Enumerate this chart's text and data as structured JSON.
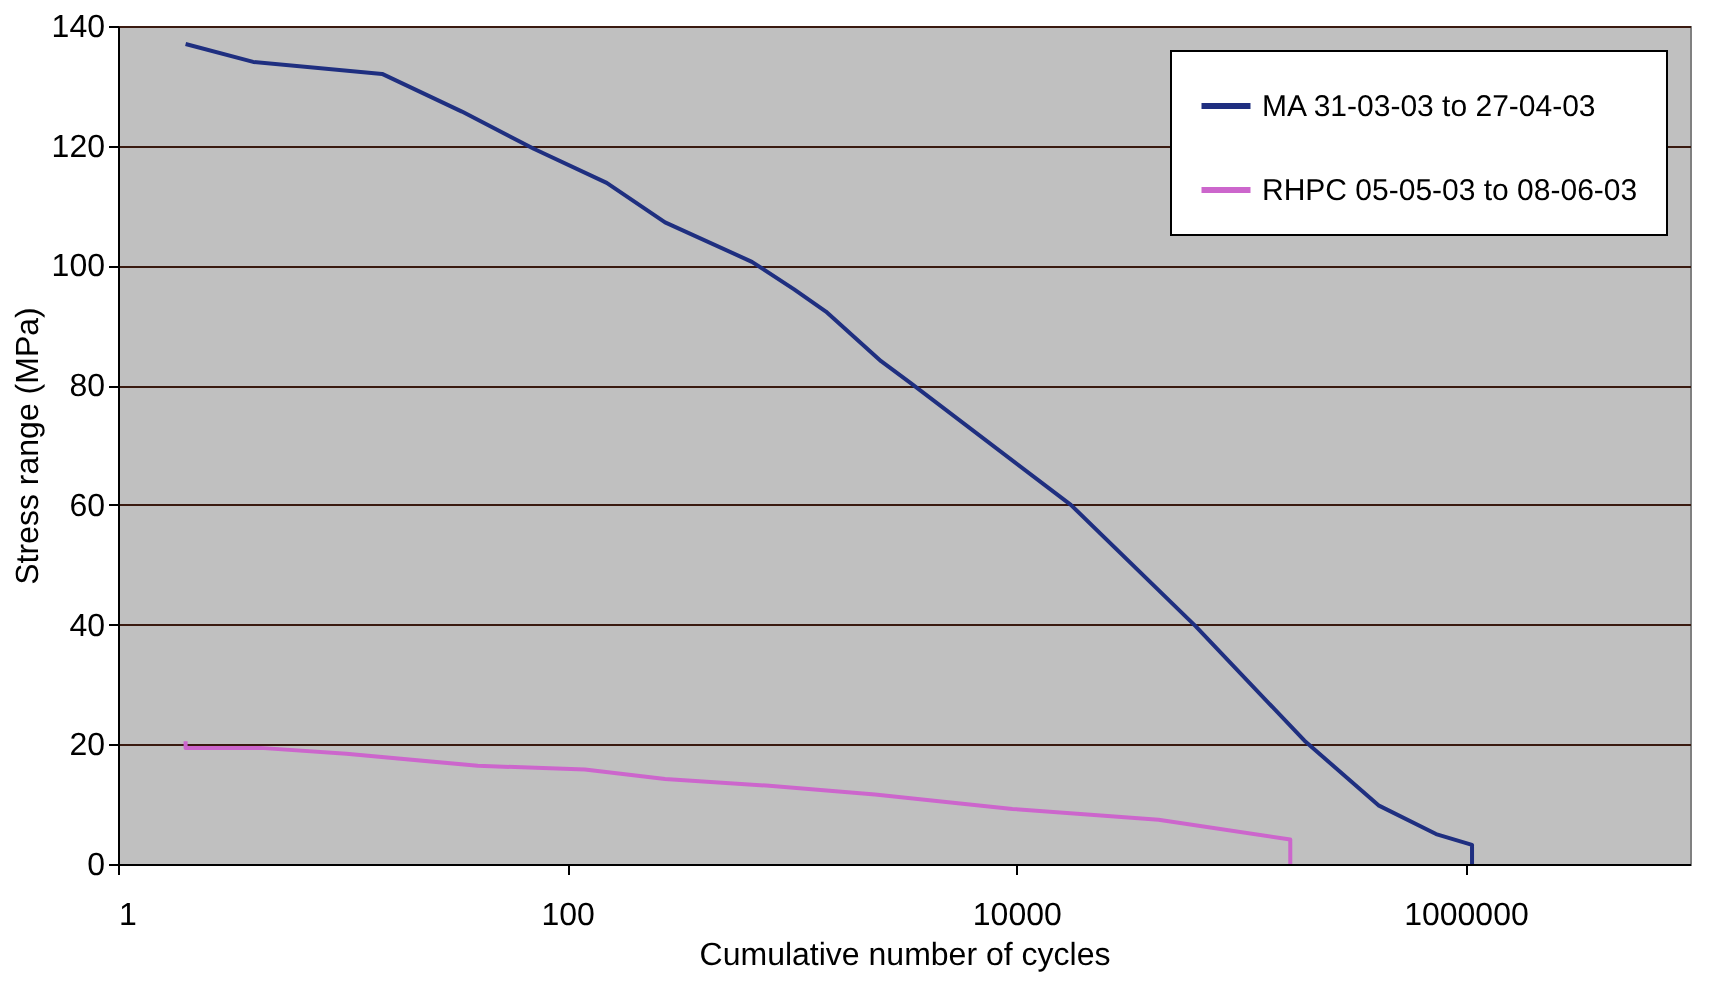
{
  "chart_data": {
    "type": "line",
    "xlabel": "Cumulative number of cycles",
    "ylabel": "Stress range (MPa)",
    "log": "x",
    "xlim": [
      1,
      10000000
    ],
    "xticks": [
      1,
      100,
      10000,
      1000000
    ],
    "ylim": [
      0,
      140
    ],
    "yticks": [
      0,
      20,
      40,
      60,
      80,
      100,
      120,
      140
    ],
    "grid": "y",
    "legend": "top right",
    "line_style": "solid",
    "marker": "none",
    "series": [
      {
        "name": "MA 31-03-03 to 27-04-03",
        "color": "#1f2f80",
        "x": [
          2,
          4,
          15,
          34,
          71,
          150,
          273,
          665,
          1025,
          1420,
          2500,
          3400,
          17500,
          63000,
          192000,
          410000,
          740000,
          1070000,
          1070000
        ],
        "values": [
          137,
          134,
          132,
          125.7,
          119.5,
          113.8,
          107.2,
          100.6,
          96,
          92.3,
          84,
          80.3,
          60,
          39.7,
          20.6,
          9.8,
          5,
          3.2,
          0
        ]
      },
      {
        "name": "RHPC 05-05-03 to 08-06-03",
        "color": "#cc66cc",
        "x": [
          2,
          2,
          4.3,
          10.4,
          40,
          120,
          273,
          770,
          2350,
          9600,
          43000,
          166000,
          166000
        ],
        "values": [
          20.5,
          19.4,
          19.4,
          18.4,
          16.4,
          15.8,
          14.2,
          13.1,
          11.6,
          9.2,
          7.4,
          4.1,
          0
        ]
      }
    ]
  }
}
